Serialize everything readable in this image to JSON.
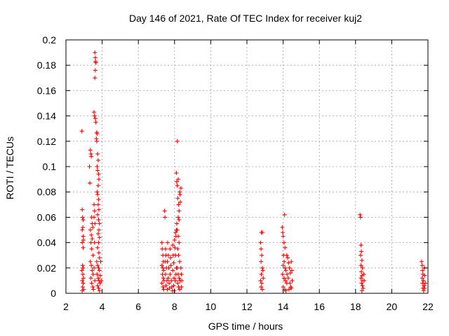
{
  "chart_data": {
    "type": "scatter",
    "title": "Day 146 of 2021, Rate Of TEC Index for receiver kuj2",
    "xlabel": "GPS time / hours",
    "ylabel": "ROTI / TECUs",
    "xlim": [
      2,
      22
    ],
    "ylim": [
      0,
      0.2
    ],
    "xticks": [
      2,
      4,
      6,
      8,
      10,
      12,
      14,
      16,
      18,
      20,
      22
    ],
    "yticks": [
      0,
      0.02,
      0.04,
      0.06,
      0.08,
      0.1,
      0.12,
      0.14,
      0.16,
      0.18,
      0.2
    ],
    "grid": true,
    "marker": "plus",
    "series_color": "#ff0000",
    "points": [
      [
        2.88,
        0.128
      ],
      [
        2.9,
        0.066
      ],
      [
        2.92,
        0.06
      ],
      [
        2.95,
        0.058
      ],
      [
        2.93,
        0.052
      ],
      [
        2.9,
        0.05
      ],
      [
        2.95,
        0.045
      ],
      [
        2.97,
        0.042
      ],
      [
        2.9,
        0.04
      ],
      [
        2.95,
        0.036
      ],
      [
        2.92,
        0.022
      ],
      [
        2.95,
        0.02
      ],
      [
        2.88,
        0.018
      ],
      [
        2.93,
        0.015
      ],
      [
        2.97,
        0.012
      ],
      [
        2.9,
        0.01
      ],
      [
        2.95,
        0.008
      ],
      [
        2.92,
        0.005
      ],
      [
        2.98,
        0.003
      ],
      [
        2.9,
        0.002
      ],
      [
        3.3,
        0.1
      ],
      [
        3.32,
        0.087
      ],
      [
        3.35,
        0.113
      ],
      [
        3.38,
        0.11
      ],
      [
        3.4,
        0.108
      ],
      [
        3.42,
        0.06
      ],
      [
        3.45,
        0.055
      ],
      [
        3.48,
        0.052
      ],
      [
        3.35,
        0.05
      ],
      [
        3.4,
        0.046
      ],
      [
        3.45,
        0.043
      ],
      [
        3.38,
        0.04
      ],
      [
        3.42,
        0.035
      ],
      [
        3.5,
        0.03
      ],
      [
        3.35,
        0.025
      ],
      [
        3.4,
        0.022
      ],
      [
        3.45,
        0.018
      ],
      [
        3.5,
        0.015
      ],
      [
        3.38,
        0.012
      ],
      [
        3.42,
        0.008
      ],
      [
        3.48,
        0.005
      ],
      [
        3.52,
        0.003
      ],
      [
        3.55,
        0.07
      ],
      [
        3.58,
        0.065
      ],
      [
        3.55,
        0.06
      ],
      [
        3.6,
        0.055
      ],
      [
        3.58,
        0.04
      ],
      [
        3.55,
        0.02
      ],
      [
        3.6,
        0.01
      ],
      [
        3.6,
        0.19
      ],
      [
        3.62,
        0.186
      ],
      [
        3.63,
        0.183
      ],
      [
        3.65,
        0.182
      ],
      [
        3.62,
        0.176
      ],
      [
        3.6,
        0.17
      ],
      [
        3.55,
        0.143
      ],
      [
        3.58,
        0.14
      ],
      [
        3.62,
        0.138
      ],
      [
        3.65,
        0.135
      ],
      [
        3.7,
        0.127
      ],
      [
        3.72,
        0.126
      ],
      [
        3.68,
        0.122
      ],
      [
        3.7,
        0.12
      ],
      [
        3.75,
        0.11
      ],
      [
        3.78,
        0.105
      ],
      [
        3.72,
        0.1
      ],
      [
        3.75,
        0.097
      ],
      [
        3.8,
        0.094
      ],
      [
        3.82,
        0.09
      ],
      [
        3.78,
        0.085
      ],
      [
        3.72,
        0.08
      ],
      [
        3.75,
        0.078
      ],
      [
        3.8,
        0.074
      ],
      [
        3.78,
        0.07
      ],
      [
        3.82,
        0.066
      ],
      [
        3.75,
        0.062
      ],
      [
        3.8,
        0.058
      ],
      [
        3.85,
        0.055
      ],
      [
        3.82,
        0.05
      ],
      [
        3.78,
        0.047
      ],
      [
        3.85,
        0.044
      ],
      [
        3.8,
        0.04
      ],
      [
        3.75,
        0.036
      ],
      [
        3.82,
        0.032
      ],
      [
        3.85,
        0.028
      ],
      [
        3.7,
        0.025
      ],
      [
        3.75,
        0.022
      ],
      [
        3.8,
        0.02
      ],
      [
        3.85,
        0.018
      ],
      [
        3.72,
        0.015
      ],
      [
        3.78,
        0.012
      ],
      [
        3.82,
        0.01
      ],
      [
        3.88,
        0.008
      ],
      [
        3.75,
        0.006
      ],
      [
        3.8,
        0.004
      ],
      [
        3.85,
        0.002
      ],
      [
        3.9,
        0.014
      ],
      [
        3.92,
        0.025
      ],
      [
        3.95,
        0.01
      ],
      [
        7.3,
        0.04
      ],
      [
        7.32,
        0.035
      ],
      [
        7.35,
        0.03
      ],
      [
        7.38,
        0.025
      ],
      [
        7.3,
        0.022
      ],
      [
        7.35,
        0.02
      ],
      [
        7.4,
        0.018
      ],
      [
        7.33,
        0.015
      ],
      [
        7.38,
        0.012
      ],
      [
        7.42,
        0.01
      ],
      [
        7.3,
        0.008
      ],
      [
        7.36,
        0.005
      ],
      [
        7.4,
        0.003
      ],
      [
        7.45,
        0.065
      ],
      [
        7.47,
        0.06
      ],
      [
        7.5,
        0.035
      ],
      [
        7.52,
        0.03
      ],
      [
        7.48,
        0.025
      ],
      [
        7.55,
        0.02
      ],
      [
        7.5,
        0.015
      ],
      [
        7.58,
        0.01
      ],
      [
        7.52,
        0.006
      ],
      [
        7.6,
        0.003
      ],
      [
        7.62,
        0.04
      ],
      [
        7.65,
        0.03
      ],
      [
        7.6,
        0.025
      ],
      [
        7.68,
        0.02
      ],
      [
        7.65,
        0.012
      ],
      [
        7.7,
        0.008
      ],
      [
        7.72,
        0.004
      ],
      [
        7.75,
        0.035
      ],
      [
        7.78,
        0.028
      ],
      [
        7.8,
        0.022
      ],
      [
        7.75,
        0.015
      ],
      [
        7.82,
        0.01
      ],
      [
        7.85,
        0.005
      ],
      [
        7.88,
        0.002
      ],
      [
        7.9,
        0.038
      ],
      [
        7.92,
        0.03
      ],
      [
        7.95,
        0.024
      ],
      [
        7.9,
        0.018
      ],
      [
        7.97,
        0.012
      ],
      [
        7.95,
        0.006
      ],
      [
        7.98,
        0.002
      ],
      [
        8.0,
        0.042
      ],
      [
        8.02,
        0.036
      ],
      [
        8.05,
        0.048
      ],
      [
        8.08,
        0.045
      ],
      [
        8.05,
        0.03
      ],
      [
        8.1,
        0.05
      ],
      [
        8.12,
        0.055
      ],
      [
        8.15,
        0.12
      ],
      [
        8.1,
        0.095
      ],
      [
        8.12,
        0.088
      ],
      [
        8.15,
        0.085
      ],
      [
        8.2,
        0.09
      ],
      [
        8.18,
        0.075
      ],
      [
        8.22,
        0.07
      ],
      [
        8.25,
        0.065
      ],
      [
        8.2,
        0.06
      ],
      [
        8.25,
        0.058
      ],
      [
        8.28,
        0.08
      ],
      [
        8.3,
        0.078
      ],
      [
        8.35,
        0.083
      ],
      [
        8.32,
        0.072
      ],
      [
        8.15,
        0.05
      ],
      [
        8.2,
        0.045
      ],
      [
        8.25,
        0.04
      ],
      [
        8.18,
        0.035
      ],
      [
        8.22,
        0.03
      ],
      [
        8.28,
        0.025
      ],
      [
        8.15,
        0.02
      ],
      [
        8.2,
        0.015
      ],
      [
        8.25,
        0.012
      ],
      [
        8.3,
        0.01
      ],
      [
        8.18,
        0.008
      ],
      [
        8.22,
        0.005
      ],
      [
        8.28,
        0.003
      ],
      [
        8.35,
        0.02
      ],
      [
        8.38,
        0.015
      ],
      [
        8.4,
        0.01
      ],
      [
        8.38,
        0.005
      ],
      [
        8.05,
        0.01
      ],
      [
        8.08,
        0.015
      ],
      [
        8.1,
        0.02
      ],
      [
        12.75,
        0.04
      ],
      [
        12.78,
        0.035
      ],
      [
        12.8,
        0.048
      ],
      [
        12.85,
        0.048
      ],
      [
        12.82,
        0.03
      ],
      [
        12.78,
        0.025
      ],
      [
        12.85,
        0.02
      ],
      [
        12.8,
        0.015
      ],
      [
        12.75,
        0.01
      ],
      [
        12.82,
        0.008
      ],
      [
        12.78,
        0.005
      ],
      [
        12.85,
        0.003
      ],
      [
        12.88,
        0.018
      ],
      [
        12.9,
        0.012
      ],
      [
        13.95,
        0.052
      ],
      [
        13.98,
        0.048
      ],
      [
        14.0,
        0.045
      ],
      [
        14.05,
        0.04
      ],
      [
        14.08,
        0.062
      ],
      [
        14.1,
        0.036
      ],
      [
        14.02,
        0.03
      ],
      [
        14.06,
        0.025
      ],
      [
        14.0,
        0.022
      ],
      [
        14.1,
        0.02
      ],
      [
        14.15,
        0.018
      ],
      [
        13.97,
        0.015
      ],
      [
        14.05,
        0.012
      ],
      [
        14.12,
        0.01
      ],
      [
        14.2,
        0.008
      ],
      [
        14.0,
        0.005
      ],
      [
        14.08,
        0.003
      ],
      [
        14.15,
        0.002
      ],
      [
        14.25,
        0.028
      ],
      [
        14.3,
        0.024
      ],
      [
        14.35,
        0.02
      ],
      [
        14.4,
        0.016
      ],
      [
        14.28,
        0.012
      ],
      [
        14.38,
        0.008
      ],
      [
        14.42,
        0.005
      ],
      [
        14.32,
        0.003
      ],
      [
        14.45,
        0.025
      ],
      [
        14.48,
        0.018
      ],
      [
        14.5,
        0.01
      ],
      [
        14.45,
        0.004
      ],
      [
        14.2,
        0.03
      ],
      [
        14.22,
        0.015
      ],
      [
        18.25,
        0.062
      ],
      [
        18.28,
        0.06
      ],
      [
        18.3,
        0.038
      ],
      [
        18.32,
        0.033
      ],
      [
        18.28,
        0.03
      ],
      [
        18.35,
        0.026
      ],
      [
        18.3,
        0.022
      ],
      [
        18.38,
        0.02
      ],
      [
        18.32,
        0.017
      ],
      [
        18.36,
        0.014
      ],
      [
        18.3,
        0.012
      ],
      [
        18.4,
        0.01
      ],
      [
        18.33,
        0.008
      ],
      [
        18.38,
        0.006
      ],
      [
        18.42,
        0.004
      ],
      [
        18.35,
        0.002
      ],
      [
        18.45,
        0.015
      ],
      [
        18.48,
        0.01
      ],
      [
        21.65,
        0.025
      ],
      [
        21.68,
        0.022
      ],
      [
        21.7,
        0.018
      ],
      [
        21.72,
        0.015
      ],
      [
        21.68,
        0.012
      ],
      [
        21.75,
        0.01
      ],
      [
        21.7,
        0.008
      ],
      [
        21.78,
        0.006
      ],
      [
        21.72,
        0.004
      ],
      [
        21.76,
        0.002
      ],
      [
        21.8,
        0.02
      ],
      [
        21.82,
        0.014
      ],
      [
        21.85,
        0.008
      ],
      [
        21.82,
        0.004
      ]
    ]
  }
}
